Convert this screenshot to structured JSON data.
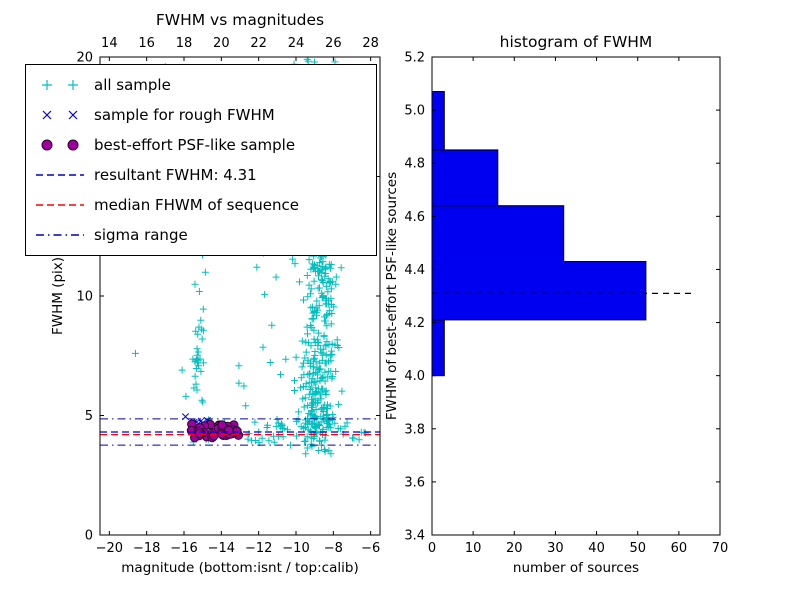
{
  "figure": {
    "background": "#ffffff"
  },
  "chart_data": [
    {
      "type": "scatter",
      "title": "FWHM vs magnitudes",
      "xlabel": "magnitude (bottom:isnt / top:calib)",
      "ylabel": "FWHM (pix)",
      "xlim": [
        -20.5,
        -5.5
      ],
      "top_xlim": [
        13.5,
        28.5
      ],
      "ylim": [
        0,
        20
      ],
      "x_ticks": [
        -20,
        -18,
        -16,
        -14,
        -12,
        -10,
        -8,
        -6
      ],
      "x_tick_labels": [
        "−20",
        "−18",
        "−16",
        "−14",
        "−12",
        "−10",
        "−8",
        "−6"
      ],
      "top_ticks": [
        14,
        16,
        18,
        20,
        22,
        24,
        26,
        28
      ],
      "y_ticks": [
        0,
        5,
        10,
        15,
        20
      ],
      "grid": false,
      "series": [
        {
          "name": "all sample",
          "marker": "plus",
          "color": "#00bfbf",
          "clusters": [
            {
              "dist": "gauss",
              "n": 150,
              "x": [
                -8.8,
                0.45
              ],
              "y": [
                6.3,
                1.4
              ],
              "clip_y": [
                3.4,
                19.9
              ]
            },
            {
              "dist": "gauss",
              "n": 130,
              "x": [
                -8.75,
                0.5
              ],
              "y": [
                10.3,
                1.9
              ],
              "clip_y": [
                3.4,
                19.9
              ]
            },
            {
              "dist": "gauss",
              "n": 60,
              "x": [
                -8.85,
                0.55
              ],
              "y": [
                14.2,
                1.7
              ],
              "clip_y": [
                3.4,
                19.9
              ]
            },
            {
              "dist": "gauss",
              "n": 55,
              "x": [
                -8.9,
                0.45
              ],
              "y": [
                4.7,
                0.45
              ],
              "clip_y": [
                3.5,
                19.9
              ]
            },
            {
              "dist": "uniform",
              "n": 22,
              "x": [
                -9.9,
                -7.9
              ],
              "y": [
                16.2,
                19.9
              ]
            },
            {
              "dist": "gauss",
              "n": 36,
              "x": [
                -15.25,
                0.22
              ],
              "y": [
                8.2,
                2.5
              ],
              "clip_y": [
                4.4,
                13.8
              ]
            },
            {
              "dist": "bandy",
              "n": 55,
              "x": [
                -16.3,
                -6.15
              ],
              "y": [
                4.35,
                0.3
              ],
              "clip_y": [
                3.5,
                5.4
              ]
            },
            {
              "dist": "uniform",
              "n": 14,
              "x": [
                -13.2,
                -9.6
              ],
              "y": [
                4.2,
                12.0
              ]
            }
          ],
          "points": [
            [
              -18.6,
              7.6
            ],
            [
              -17.0,
              19.6
            ],
            [
              -16.6,
              12.1
            ],
            [
              -12.4,
              11.9
            ],
            [
              -12.1,
              11.2
            ],
            [
              -6.5,
              4.3
            ],
            [
              -6.9,
              4.05
            ],
            [
              -7.3,
              19.4
            ],
            [
              -10.1,
              19.7
            ],
            [
              -9.4,
              19.9
            ],
            [
              -16.1,
              6.9
            ],
            [
              -15.9,
              5.8
            ]
          ]
        },
        {
          "name": "sample for rough FWHM",
          "marker": "x",
          "color": "#0000dd",
          "clusters": [
            {
              "dist": "gauss",
              "n": 9,
              "x": [
                -15.35,
                0.3
              ],
              "y": [
                4.72,
                0.12
              ],
              "clip_y": [
                4.5,
                5.0
              ]
            }
          ],
          "points": [
            [
              -15.92,
              4.95
            ],
            [
              -14.6,
              4.62
            ]
          ]
        },
        {
          "name": "best-effort PSF-like sample",
          "marker": "circle",
          "color": "#a000a0",
          "edge": "#2a002a",
          "clusters": [
            {
              "dist": "bandy",
              "n": 55,
              "x": [
                -15.65,
                -13.05
              ],
              "y": [
                4.37,
                0.15
              ],
              "clip_y": [
                4.08,
                4.72
              ]
            }
          ]
        }
      ],
      "lines": [
        {
          "name": "resultant FWHM",
          "value": 4.31,
          "color": "#0000cc",
          "style": "dashed"
        },
        {
          "name": "median FWHM of sequence",
          "value": 4.2,
          "color": "#ff0000",
          "style": "dashed"
        },
        {
          "name": "sigma range",
          "values": [
            3.76,
            4.86
          ],
          "color": "#0000aa",
          "style": "dashdot"
        }
      ]
    },
    {
      "type": "histogram-horizontal",
      "title": "histogram of FWHM",
      "xlabel": "number of sources",
      "ylabel": "FWHM of best-effort PSF-like sources",
      "xlim": [
        0,
        70
      ],
      "ylim": [
        3.4,
        5.2
      ],
      "x_ticks": [
        0,
        10,
        20,
        30,
        40,
        50,
        60,
        70
      ],
      "y_ticks": [
        3.4,
        3.6,
        3.8,
        4.0,
        4.2,
        4.4,
        4.6,
        4.8,
        5.0,
        5.2
      ],
      "y_tick_labels": [
        "3.4",
        "3.6",
        "3.8",
        "4.0",
        "4.2",
        "4.4",
        "4.6",
        "4.8",
        "5.0",
        "5.2"
      ],
      "bar_color": "#0000f0",
      "bins": [
        {
          "from": 4.0,
          "to": 4.21,
          "count": 3
        },
        {
          "from": 4.21,
          "to": 4.43,
          "count": 52
        },
        {
          "from": 4.43,
          "to": 4.64,
          "count": 32
        },
        {
          "from": 4.64,
          "to": 4.85,
          "count": 16
        },
        {
          "from": 4.85,
          "to": 5.07,
          "count": 3
        }
      ],
      "dashed_line": {
        "value": 4.31,
        "x_end": 63,
        "color": "#000000"
      }
    }
  ],
  "legend": {
    "position": "upper-left",
    "items": [
      {
        "label": "all sample",
        "marker": "plus",
        "color": "#00bfbf"
      },
      {
        "label": "sample for rough FWHM",
        "marker": "x",
        "color": "#0000dd"
      },
      {
        "label": "best-effort PSF-like sample",
        "marker": "circle",
        "color": "#a000a0",
        "edge": "#2a002a"
      },
      {
        "label": "resultant FWHM: 4.31",
        "marker": "dashed",
        "color": "#0000cc"
      },
      {
        "label": "median FHWM of sequence",
        "marker": "dashed",
        "color": "#ff0000"
      },
      {
        "label": "sigma range",
        "marker": "dashdot",
        "color": "#0000aa"
      }
    ]
  }
}
